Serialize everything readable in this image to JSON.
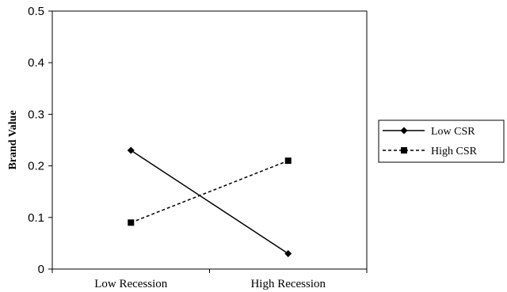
{
  "chart_data": {
    "type": "line",
    "title": "",
    "xlabel": "",
    "ylabel": "Brand Value",
    "categories": [
      "Low Recession",
      "High Recession"
    ],
    "ylim": [
      0,
      0.5
    ],
    "yticks": [
      "0",
      "0.1",
      "0.2",
      "0.3",
      "0.4",
      "0.5"
    ],
    "grid": false,
    "legend_position": "right",
    "series": [
      {
        "name": "Low CSR",
        "values": [
          0.23,
          0.03
        ],
        "marker": "diamond",
        "line_style": "solid",
        "color": "#000000"
      },
      {
        "name": "High CSR",
        "values": [
          0.09,
          0.21
        ],
        "marker": "square",
        "line_style": "dashed",
        "color": "#000000"
      }
    ]
  }
}
